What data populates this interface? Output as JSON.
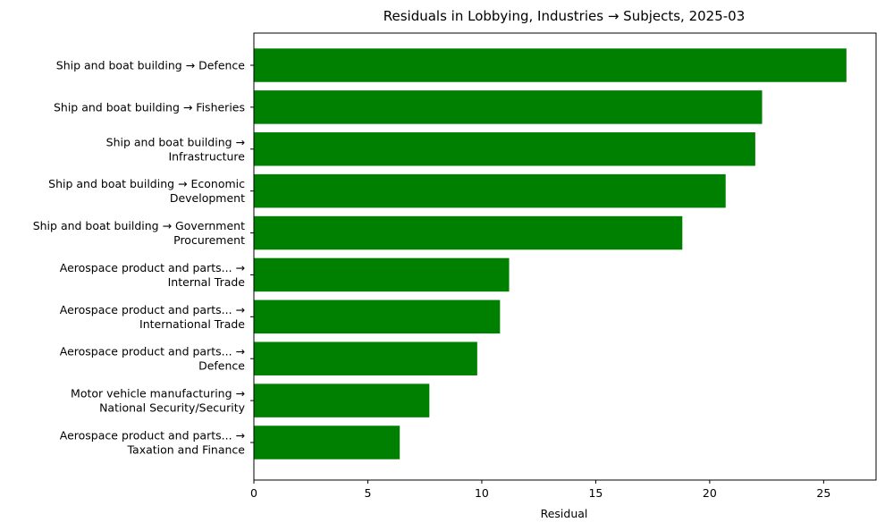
{
  "chart_data": {
    "type": "bar",
    "orientation": "horizontal",
    "title": "Residuals in Lobbying, Industries → Subjects, 2025-03",
    "xlabel": "Residual",
    "ylabel": "",
    "xlim": [
      0,
      27.3
    ],
    "xticks": [
      0,
      5,
      10,
      15,
      20,
      25
    ],
    "grid": false,
    "bar_color": "#008000",
    "categories": [
      [
        "Ship and boat building → Defence"
      ],
      [
        "Ship and boat building → Fisheries"
      ],
      [
        "Ship and boat building →",
        "Infrastructure"
      ],
      [
        "Ship and boat building → Economic",
        "Development"
      ],
      [
        "Ship and boat building → Government",
        "Procurement"
      ],
      [
        "Aerospace product and parts... →",
        "Internal Trade"
      ],
      [
        "Aerospace product and parts... →",
        "International Trade"
      ],
      [
        "Aerospace product and parts... →",
        "Defence"
      ],
      [
        "Motor vehicle manufacturing →",
        "National Security/Security"
      ],
      [
        "Aerospace product and parts... →",
        "Taxation and Finance"
      ]
    ],
    "values": [
      26.0,
      22.3,
      22.0,
      20.7,
      18.8,
      11.2,
      10.8,
      9.8,
      7.7,
      6.4
    ]
  }
}
